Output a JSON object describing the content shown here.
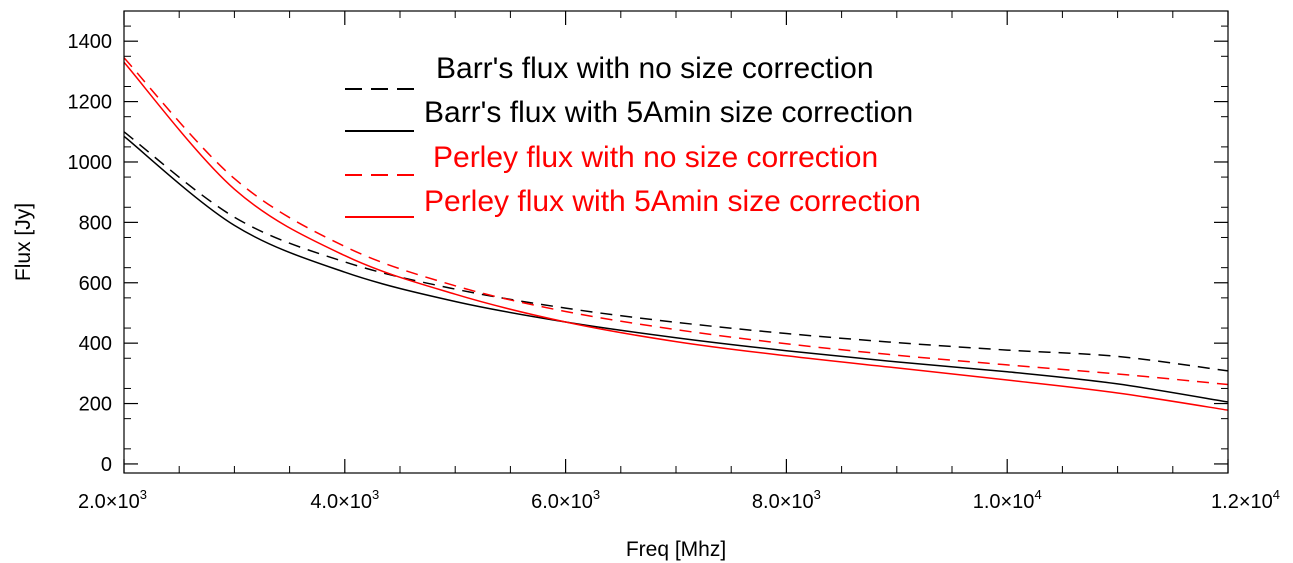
{
  "chart_data": {
    "type": "line",
    "xlabel": "Freq [Mhz]",
    "ylabel": "Flux [Jy]",
    "xlim": [
      2000,
      12000
    ],
    "ylim": [
      -30,
      1500
    ],
    "x_ticks": [
      2000,
      4000,
      6000,
      8000,
      10000,
      12000
    ],
    "x_tick_labels": [
      {
        "mantissa": "2.0",
        "exp": "3"
      },
      {
        "mantissa": "4.0",
        "exp": "3"
      },
      {
        "mantissa": "6.0",
        "exp": "3"
      },
      {
        "mantissa": "8.0",
        "exp": "3"
      },
      {
        "mantissa": "1.0",
        "exp": "4"
      },
      {
        "mantissa": "1.2",
        "exp": "4"
      }
    ],
    "y_ticks": [
      0,
      200,
      400,
      600,
      800,
      1000,
      1200,
      1400
    ],
    "y_tick_labels": [
      "0",
      "200",
      "400",
      "600",
      "800",
      "1000",
      "1200",
      "1400"
    ],
    "legend_position": "top-center",
    "series": [
      {
        "name": "Barr's flux with no size correction",
        "color": "#000000",
        "dash": "dashed",
        "x": [
          2000,
          3000,
          4000,
          5000,
          6000,
          7000,
          8000,
          9000,
          10000,
          11000,
          12000
        ],
        "y": [
          1100,
          817,
          669,
          579,
          516,
          469,
          432,
          402,
          377,
          356,
          308
        ]
      },
      {
        "name": "Barr's flux with 5Amin size correction",
        "color": "#000000",
        "dash": "solid",
        "x": [
          2000,
          3000,
          4000,
          5000,
          6000,
          7000,
          8000,
          9000,
          10000,
          11000,
          12000
        ],
        "y": [
          1085,
          790,
          635,
          538,
          470,
          418,
          375,
          338,
          305,
          265,
          205
        ]
      },
      {
        "name": "Perley flux with no size correction",
        "color": "#ff0000",
        "dash": "dashed",
        "x": [
          2000,
          3000,
          4000,
          5000,
          6000,
          7000,
          8000,
          9000,
          10000,
          11000,
          12000
        ],
        "y": [
          1345,
          945,
          720,
          590,
          505,
          445,
          398,
          360,
          328,
          298,
          263
        ]
      },
      {
        "name": "Perley flux with 5Amin size correction",
        "color": "#ff0000",
        "dash": "solid",
        "x": [
          2000,
          3000,
          4000,
          5000,
          6000,
          7000,
          8000,
          9000,
          10000,
          11000,
          12000
        ],
        "y": [
          1330,
          910,
          690,
          562,
          470,
          405,
          358,
          318,
          278,
          235,
          178
        ]
      }
    ]
  }
}
